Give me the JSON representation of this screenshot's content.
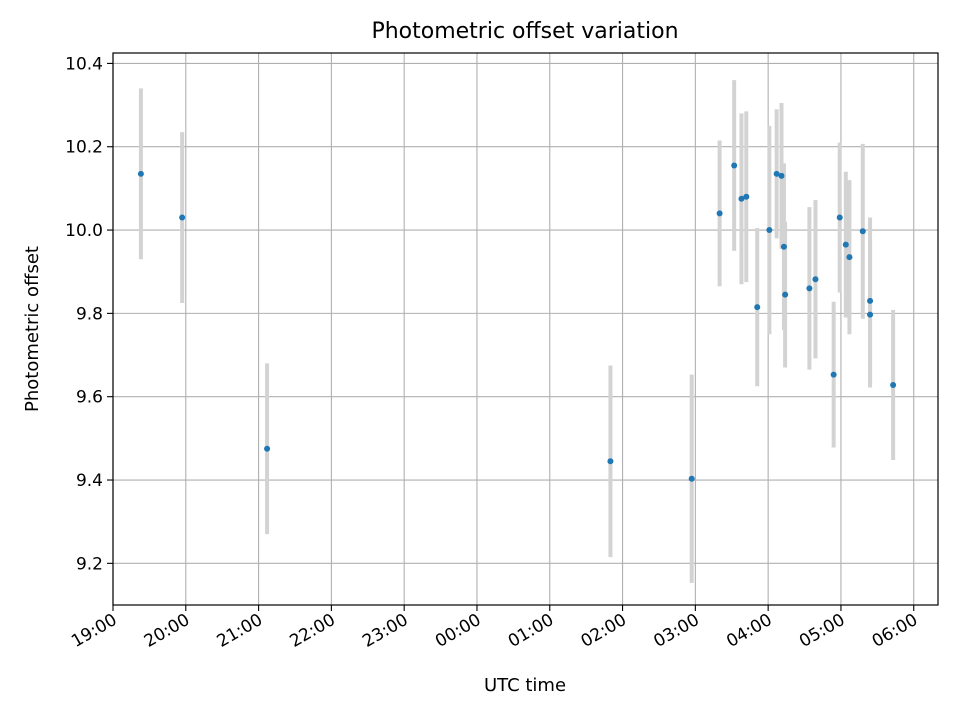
{
  "chart_data": {
    "type": "scatter",
    "title": "Photometric offset variation",
    "xlabel": "UTC time",
    "ylabel": "Photometric offset",
    "x_tick_labels": [
      "19:00",
      "20:00",
      "21:00",
      "22:00",
      "23:00",
      "00:00",
      "01:00",
      "02:00",
      "03:00",
      "04:00",
      "05:00",
      "06:00"
    ],
    "y_ticks": [
      9.2,
      9.4,
      9.6,
      9.8,
      10.0,
      10.2,
      10.4
    ],
    "y_tick_labels": [
      "9.2",
      "9.4",
      "9.6",
      "9.8",
      "10.0",
      "10.2",
      "10.4"
    ],
    "xlim": [
      "19:00",
      "06:20"
    ],
    "ylim": [
      9.1,
      10.425
    ],
    "grid": true,
    "legend": "none",
    "colors": {
      "point": "#1f77b4",
      "errorbar": "#d3d3d3",
      "grid": "#b0b0b0"
    },
    "series": [
      {
        "points": [
          {
            "time": "19:23",
            "y": 10.135,
            "err": 0.205
          },
          {
            "time": "19:57",
            "y": 10.03,
            "err": 0.205
          },
          {
            "time": "21:07",
            "y": 9.475,
            "err": 0.205
          },
          {
            "time": "01:50",
            "y": 9.445,
            "err": 0.23
          },
          {
            "time": "02:57",
            "y": 9.403,
            "err": 0.25
          },
          {
            "time": "03:20",
            "y": 10.04,
            "err": 0.175
          },
          {
            "time": "03:32",
            "y": 10.155,
            "err": 0.205
          },
          {
            "time": "03:38",
            "y": 10.075,
            "err": 0.205
          },
          {
            "time": "03:42",
            "y": 10.08,
            "err": 0.205
          },
          {
            "time": "03:51",
            "y": 9.815,
            "err": 0.19
          },
          {
            "time": "04:01",
            "y": 10.0,
            "err": 0.25
          },
          {
            "time": "04:07",
            "y": 10.135,
            "err": 0.155
          },
          {
            "time": "04:11",
            "y": 10.13,
            "err": 0.175
          },
          {
            "time": "04:13",
            "y": 9.96,
            "err": 0.2
          },
          {
            "time": "04:14",
            "y": 9.845,
            "err": 0.175
          },
          {
            "time": "04:34",
            "y": 9.86,
            "err": 0.195
          },
          {
            "time": "04:39",
            "y": 9.882,
            "err": 0.19
          },
          {
            "time": "04:54",
            "y": 9.653,
            "err": 0.175
          },
          {
            "time": "04:59",
            "y": 10.03,
            "err": 0.18
          },
          {
            "time": "05:04",
            "y": 9.965,
            "err": 0.175
          },
          {
            "time": "05:07",
            "y": 9.935,
            "err": 0.185
          },
          {
            "time": "05:18",
            "y": 9.997,
            "err": 0.21
          },
          {
            "time": "05:24",
            "y": 9.83,
            "err": 0.2
          },
          {
            "time": "05:24",
            "y": 9.797,
            "err": 0.175
          },
          {
            "time": "05:43",
            "y": 9.628,
            "err": 0.18
          }
        ]
      }
    ]
  }
}
